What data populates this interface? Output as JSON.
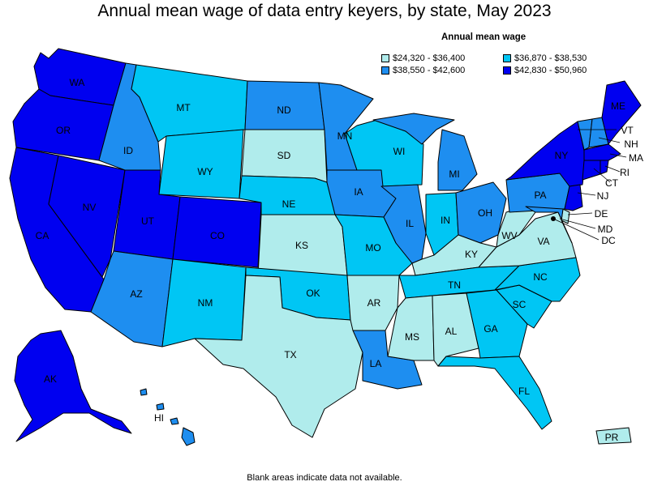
{
  "title": "Annual mean wage of data entry keyers, by state, May 2023",
  "legend": {
    "title": "Annual mean wage",
    "items": [
      {
        "label": "$24,320 - $36,400",
        "color": "#b0ecec"
      },
      {
        "label": "$36,870 - $38,530",
        "color": "#00c6f4"
      },
      {
        "label": "$38,550 - $42,600",
        "color": "#1e8ef0"
      },
      {
        "label": "$42,830 - $50,960",
        "color": "#0000f0"
      }
    ]
  },
  "footnote": "Blank areas indicate data not available.",
  "states": {
    "WA": "WA",
    "OR": "OR",
    "CA": "CA",
    "NV": "NV",
    "ID": "ID",
    "MT": "MT",
    "WY": "WY",
    "UT": "UT",
    "CO": "CO",
    "AZ": "AZ",
    "NM": "NM",
    "ND": "ND",
    "SD": "SD",
    "NE": "NE",
    "KS": "KS",
    "OK": "OK",
    "TX": "TX",
    "MN": "MN",
    "IA": "IA",
    "MO": "MO",
    "AR": "AR",
    "LA": "LA",
    "WI": "WI",
    "IL": "IL",
    "MI": "MI",
    "IN": "IN",
    "OH": "OH",
    "KY": "KY",
    "TN": "TN",
    "MS": "MS",
    "AL": "AL",
    "GA": "GA",
    "FL": "FL",
    "SC": "SC",
    "NC": "NC",
    "VA": "VA",
    "WV": "WV",
    "PA": "PA",
    "NY": "NY",
    "ME": "ME",
    "VT": "VT",
    "NH": "NH",
    "MA": "MA",
    "RI": "RI",
    "CT": "CT",
    "NJ": "NJ",
    "DE": "DE",
    "MD": "MD",
    "DC": "DC",
    "AK": "AK",
    "HI": "HI",
    "PR": "PR"
  }
}
